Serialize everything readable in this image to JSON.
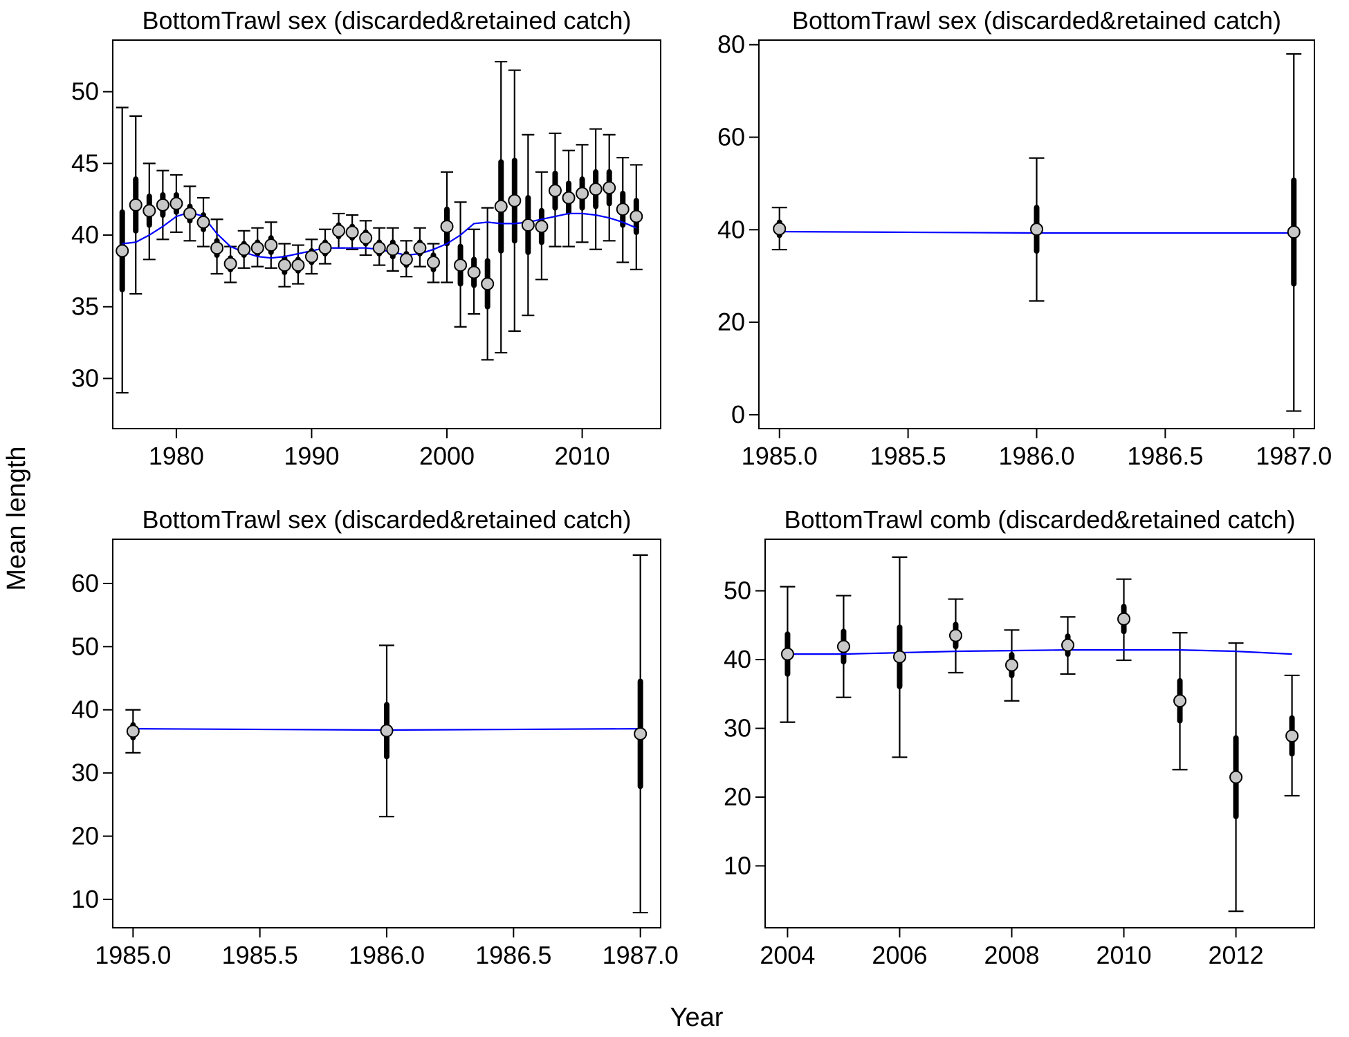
{
  "figure": {
    "xlabel": "Year",
    "ylabel": "Mean length"
  },
  "chart_data": [
    {
      "type": "scatter",
      "title": "BottomTrawl sex (discarded&retained catch)",
      "xlim": [
        1975.3,
        2015.8
      ],
      "ylim": [
        26.5,
        53.6
      ],
      "xticks": [
        1980,
        1990,
        2000,
        2010
      ],
      "xtick_labels": [
        "1980",
        "1990",
        "2000",
        "2010"
      ],
      "yticks": [
        30,
        35,
        40,
        45,
        50
      ],
      "ytick_labels": [
        "30",
        "35",
        "40",
        "45",
        "50"
      ],
      "grid": false,
      "points": [
        {
          "x": 1976,
          "y": 38.9,
          "lo": 29.0,
          "hi": 48.9,
          "thick_lo": 36.2,
          "thick_hi": 41.6
        },
        {
          "x": 1977,
          "y": 42.1,
          "lo": 35.9,
          "hi": 48.3,
          "thick_lo": 40.3,
          "thick_hi": 43.9
        },
        {
          "x": 1978,
          "y": 41.7,
          "lo": 38.3,
          "hi": 45.0,
          "thick_lo": 40.7,
          "thick_hi": 42.7
        },
        {
          "x": 1979,
          "y": 42.1,
          "lo": 39.7,
          "hi": 44.5,
          "thick_lo": 41.4,
          "thick_hi": 42.8
        },
        {
          "x": 1980,
          "y": 42.2,
          "lo": 40.2,
          "hi": 44.2,
          "thick_lo": 41.6,
          "thick_hi": 42.8
        },
        {
          "x": 1981,
          "y": 41.5,
          "lo": 39.6,
          "hi": 43.4,
          "thick_lo": 41.0,
          "thick_hi": 42.0
        },
        {
          "x": 1982,
          "y": 40.9,
          "lo": 39.2,
          "hi": 42.6,
          "thick_lo": 40.4,
          "thick_hi": 41.4
        },
        {
          "x": 1983,
          "y": 39.1,
          "lo": 37.3,
          "hi": 41.1,
          "thick_lo": 38.6,
          "thick_hi": 39.6
        },
        {
          "x": 1984,
          "y": 38.0,
          "lo": 36.7,
          "hi": 39.2,
          "thick_lo": 37.6,
          "thick_hi": 38.4
        },
        {
          "x": 1985,
          "y": 39.0,
          "lo": 37.7,
          "hi": 40.3,
          "thick_lo": 38.6,
          "thick_hi": 39.4
        },
        {
          "x": 1986,
          "y": 39.1,
          "lo": 37.8,
          "hi": 40.5,
          "thick_lo": 38.7,
          "thick_hi": 39.5
        },
        {
          "x": 1987,
          "y": 39.3,
          "lo": 37.7,
          "hi": 40.9,
          "thick_lo": 38.8,
          "thick_hi": 39.8
        },
        {
          "x": 1988,
          "y": 37.9,
          "lo": 36.4,
          "hi": 39.4,
          "thick_lo": 37.4,
          "thick_hi": 38.4
        },
        {
          "x": 1989,
          "y": 37.9,
          "lo": 36.6,
          "hi": 39.3,
          "thick_lo": 37.5,
          "thick_hi": 38.3
        },
        {
          "x": 1990,
          "y": 38.5,
          "lo": 37.3,
          "hi": 39.7,
          "thick_lo": 38.1,
          "thick_hi": 38.9
        },
        {
          "x": 1991,
          "y": 39.1,
          "lo": 38.0,
          "hi": 40.4,
          "thick_lo": 38.7,
          "thick_hi": 39.5
        },
        {
          "x": 1992,
          "y": 40.3,
          "lo": 39.1,
          "hi": 41.5,
          "thick_lo": 39.9,
          "thick_hi": 40.7
        },
        {
          "x": 1993,
          "y": 40.2,
          "lo": 39.0,
          "hi": 41.4,
          "thick_lo": 39.8,
          "thick_hi": 40.6
        },
        {
          "x": 1994,
          "y": 39.8,
          "lo": 38.6,
          "hi": 41.0,
          "thick_lo": 39.4,
          "thick_hi": 40.2
        },
        {
          "x": 1995,
          "y": 39.1,
          "lo": 37.9,
          "hi": 40.5,
          "thick_lo": 38.7,
          "thick_hi": 39.5
        },
        {
          "x": 1996,
          "y": 39.0,
          "lo": 37.5,
          "hi": 40.5,
          "thick_lo": 38.5,
          "thick_hi": 39.5
        },
        {
          "x": 1997,
          "y": 38.3,
          "lo": 37.1,
          "hi": 39.6,
          "thick_lo": 37.9,
          "thick_hi": 38.7
        },
        {
          "x": 1998,
          "y": 39.1,
          "lo": 37.8,
          "hi": 40.5,
          "thick_lo": 38.7,
          "thick_hi": 39.5
        },
        {
          "x": 1999,
          "y": 38.1,
          "lo": 36.7,
          "hi": 39.4,
          "thick_lo": 37.6,
          "thick_hi": 38.6
        },
        {
          "x": 2000,
          "y": 40.6,
          "lo": 36.7,
          "hi": 44.4,
          "thick_lo": 39.4,
          "thick_hi": 41.8
        },
        {
          "x": 2001,
          "y": 37.9,
          "lo": 33.6,
          "hi": 42.3,
          "thick_lo": 36.6,
          "thick_hi": 39.2
        },
        {
          "x": 2002,
          "y": 37.4,
          "lo": 34.5,
          "hi": 40.4,
          "thick_lo": 36.5,
          "thick_hi": 38.3
        },
        {
          "x": 2003,
          "y": 36.6,
          "lo": 31.3,
          "hi": 41.9,
          "thick_lo": 35.0,
          "thick_hi": 38.2
        },
        {
          "x": 2004,
          "y": 42.0,
          "lo": 31.8,
          "hi": 52.1,
          "thick_lo": 38.9,
          "thick_hi": 45.1
        },
        {
          "x": 2005,
          "y": 42.4,
          "lo": 33.3,
          "hi": 51.5,
          "thick_lo": 39.6,
          "thick_hi": 45.2
        },
        {
          "x": 2006,
          "y": 40.7,
          "lo": 34.4,
          "hi": 47.0,
          "thick_lo": 38.8,
          "thick_hi": 42.6
        },
        {
          "x": 2007,
          "y": 40.6,
          "lo": 36.9,
          "hi": 44.4,
          "thick_lo": 39.5,
          "thick_hi": 41.7
        },
        {
          "x": 2008,
          "y": 43.1,
          "lo": 39.2,
          "hi": 47.1,
          "thick_lo": 41.9,
          "thick_hi": 44.3
        },
        {
          "x": 2009,
          "y": 42.6,
          "lo": 39.2,
          "hi": 45.9,
          "thick_lo": 41.6,
          "thick_hi": 43.6
        },
        {
          "x": 2010,
          "y": 42.9,
          "lo": 39.5,
          "hi": 46.3,
          "thick_lo": 41.9,
          "thick_hi": 43.9
        },
        {
          "x": 2011,
          "y": 43.2,
          "lo": 39.0,
          "hi": 47.4,
          "thick_lo": 42.0,
          "thick_hi": 44.4
        },
        {
          "x": 2012,
          "y": 43.3,
          "lo": 39.6,
          "hi": 47.0,
          "thick_lo": 42.2,
          "thick_hi": 44.4
        },
        {
          "x": 2013,
          "y": 41.8,
          "lo": 38.1,
          "hi": 45.4,
          "thick_lo": 40.7,
          "thick_hi": 42.9
        },
        {
          "x": 2014,
          "y": 41.3,
          "lo": 37.6,
          "hi": 44.9,
          "thick_lo": 40.2,
          "thick_hi": 42.4
        }
      ],
      "fit_line": {
        "color": "#0000ff",
        "x": [
          1976,
          1977,
          1978,
          1979,
          1980,
          1981,
          1982,
          1983,
          1984,
          1985,
          1986,
          1987,
          1988,
          1989,
          1990,
          1991,
          1992,
          1993,
          1994,
          1995,
          1996,
          1997,
          1998,
          1999,
          2000,
          2001,
          2002,
          2003,
          2004,
          2005,
          2006,
          2007,
          2008,
          2009,
          2010,
          2011,
          2012,
          2013,
          2014
        ],
        "y": [
          39.4,
          39.5,
          40.0,
          40.6,
          41.3,
          41.6,
          41.3,
          40.1,
          39.2,
          38.8,
          38.5,
          38.4,
          38.5,
          38.7,
          38.9,
          39.1,
          39.1,
          39.1,
          39.1,
          39.0,
          38.8,
          38.6,
          38.7,
          39.0,
          39.4,
          40.0,
          40.8,
          40.9,
          40.8,
          40.8,
          40.9,
          41.1,
          41.3,
          41.5,
          41.5,
          41.4,
          41.2,
          40.9,
          40.5
        ]
      }
    },
    {
      "type": "scatter",
      "title": "BottomTrawl sex (discarded&retained catch)",
      "xlim": [
        1984.92,
        1987.08
      ],
      "ylim": [
        -3.0,
        81.0
      ],
      "xticks": [
        1985.0,
        1985.5,
        1986.0,
        1986.5,
        1987.0
      ],
      "xtick_labels": [
        "1985.0",
        "1985.5",
        "1986.0",
        "1986.5",
        "1987.0"
      ],
      "yticks": [
        0,
        20,
        40,
        60,
        80
      ],
      "ytick_labels": [
        "0",
        "20",
        "40",
        "60",
        "80"
      ],
      "grid": false,
      "points": [
        {
          "x": 1985,
          "y": 40.2,
          "lo": 35.7,
          "hi": 44.8,
          "thick_lo": 38.8,
          "thick_hi": 41.6
        },
        {
          "x": 1986,
          "y": 40.1,
          "lo": 24.6,
          "hi": 55.5,
          "thick_lo": 35.4,
          "thick_hi": 44.8
        },
        {
          "x": 1987,
          "y": 39.5,
          "lo": 0.8,
          "hi": 78.0,
          "thick_lo": 28.3,
          "thick_hi": 50.7
        }
      ],
      "fit_line": {
        "color": "#0000ff",
        "x": [
          1985,
          1986,
          1987
        ],
        "y": [
          39.6,
          39.3,
          39.3
        ]
      }
    },
    {
      "type": "scatter",
      "title": "BottomTrawl sex (discarded&retained catch)",
      "xlim": [
        1984.92,
        1987.08
      ],
      "ylim": [
        5.5,
        67.0
      ],
      "xticks": [
        1985.0,
        1985.5,
        1986.0,
        1986.5,
        1987.0
      ],
      "xtick_labels": [
        "1985.0",
        "1985.5",
        "1986.0",
        "1986.5",
        "1987.0"
      ],
      "yticks": [
        10,
        20,
        30,
        40,
        50,
        60
      ],
      "ytick_labels": [
        "10",
        "20",
        "30",
        "40",
        "50",
        "60"
      ],
      "grid": false,
      "points": [
        {
          "x": 1985,
          "y": 36.6,
          "lo": 33.2,
          "hi": 40.0,
          "thick_lo": 35.6,
          "thick_hi": 37.6
        },
        {
          "x": 1986,
          "y": 36.7,
          "lo": 23.1,
          "hi": 50.2,
          "thick_lo": 32.6,
          "thick_hi": 40.8
        },
        {
          "x": 1987,
          "y": 36.2,
          "lo": 7.9,
          "hi": 64.5,
          "thick_lo": 27.9,
          "thick_hi": 44.5
        }
      ],
      "fit_line": {
        "color": "#0000ff",
        "x": [
          1985,
          1986,
          1987
        ],
        "y": [
          37.0,
          36.8,
          37.0
        ]
      }
    },
    {
      "type": "scatter",
      "title": "BottomTrawl comb (discarded&retained catch)",
      "xlim": [
        2003.6,
        2013.4
      ],
      "ylim": [
        1.0,
        57.5
      ],
      "xticks": [
        2004,
        2006,
        2008,
        2010,
        2012
      ],
      "xtick_labels": [
        "2004",
        "2006",
        "2008",
        "2010",
        "2012"
      ],
      "yticks": [
        10,
        20,
        30,
        40,
        50
      ],
      "ytick_labels": [
        "10",
        "20",
        "30",
        "40",
        "50"
      ],
      "grid": false,
      "points": [
        {
          "x": 2004,
          "y": 40.8,
          "lo": 30.9,
          "hi": 50.6,
          "thick_lo": 37.9,
          "thick_hi": 43.7
        },
        {
          "x": 2005,
          "y": 41.9,
          "lo": 34.5,
          "hi": 49.3,
          "thick_lo": 39.7,
          "thick_hi": 44.1
        },
        {
          "x": 2006,
          "y": 40.4,
          "lo": 25.8,
          "hi": 54.9,
          "thick_lo": 36.1,
          "thick_hi": 44.7
        },
        {
          "x": 2007,
          "y": 43.5,
          "lo": 38.1,
          "hi": 48.8,
          "thick_lo": 41.9,
          "thick_hi": 45.1
        },
        {
          "x": 2008,
          "y": 39.2,
          "lo": 34.0,
          "hi": 44.3,
          "thick_lo": 37.7,
          "thick_hi": 40.7
        },
        {
          "x": 2009,
          "y": 42.1,
          "lo": 37.9,
          "hi": 46.2,
          "thick_lo": 40.8,
          "thick_hi": 43.4
        },
        {
          "x": 2010,
          "y": 45.9,
          "lo": 39.9,
          "hi": 51.7,
          "thick_lo": 44.1,
          "thick_hi": 47.7
        },
        {
          "x": 2011,
          "y": 34.0,
          "lo": 24.0,
          "hi": 43.9,
          "thick_lo": 31.1,
          "thick_hi": 36.9
        },
        {
          "x": 2012,
          "y": 22.9,
          "lo": 3.4,
          "hi": 42.4,
          "thick_lo": 17.2,
          "thick_hi": 28.6
        },
        {
          "x": 2013,
          "y": 28.9,
          "lo": 20.2,
          "hi": 37.7,
          "thick_lo": 26.3,
          "thick_hi": 31.5
        }
      ],
      "fit_line": {
        "color": "#0000ff",
        "x": [
          2004,
          2005,
          2006,
          2007,
          2008,
          2009,
          2010,
          2011,
          2012,
          2013
        ],
        "y": [
          40.8,
          40.8,
          41.0,
          41.2,
          41.3,
          41.4,
          41.4,
          41.4,
          41.2,
          40.8
        ]
      }
    }
  ]
}
